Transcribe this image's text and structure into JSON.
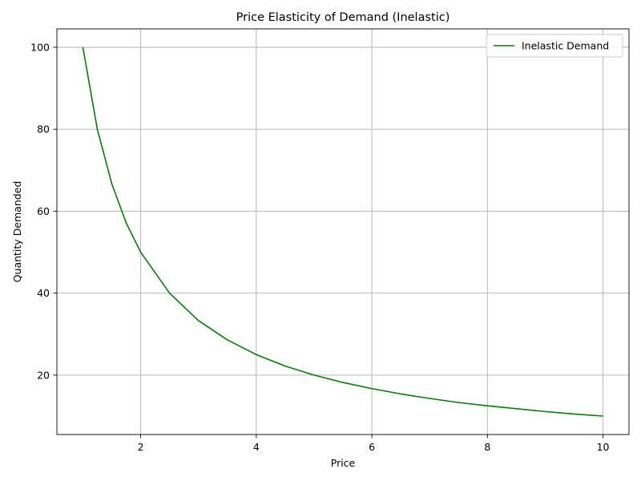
{
  "chart_data": {
    "type": "line",
    "title": "Price Elasticity of Demand (Inelastic)",
    "xlabel": "Price",
    "ylabel": "Quantity Demanded",
    "xlim": [
      0.55,
      10.45
    ],
    "ylim": [
      5.5,
      104.5
    ],
    "grid": true,
    "legend_placement": "top-right",
    "x_ticks": [
      2,
      4,
      6,
      8,
      10
    ],
    "x_tick_labels": [
      "2",
      "4",
      "6",
      "8",
      "10"
    ],
    "y_ticks": [
      20,
      40,
      60,
      80,
      100
    ],
    "y_tick_labels": [
      "20",
      "40",
      "60",
      "80",
      "100"
    ],
    "series": [
      {
        "name": "Inelastic Demand",
        "color": "#008000",
        "x": [
          1.0,
          1.25,
          1.5,
          1.75,
          2.0,
          2.5,
          3.0,
          3.5,
          4.0,
          4.5,
          5.0,
          5.5,
          6.0,
          6.5,
          7.0,
          7.5,
          8.0,
          8.5,
          9.0,
          9.5,
          10.0
        ],
        "y": [
          100.0,
          80.0,
          66.7,
          57.1,
          50.0,
          40.0,
          33.3,
          28.6,
          25.0,
          22.2,
          20.0,
          18.2,
          16.7,
          15.4,
          14.3,
          13.3,
          12.5,
          11.8,
          11.1,
          10.5,
          10.0
        ]
      }
    ]
  }
}
